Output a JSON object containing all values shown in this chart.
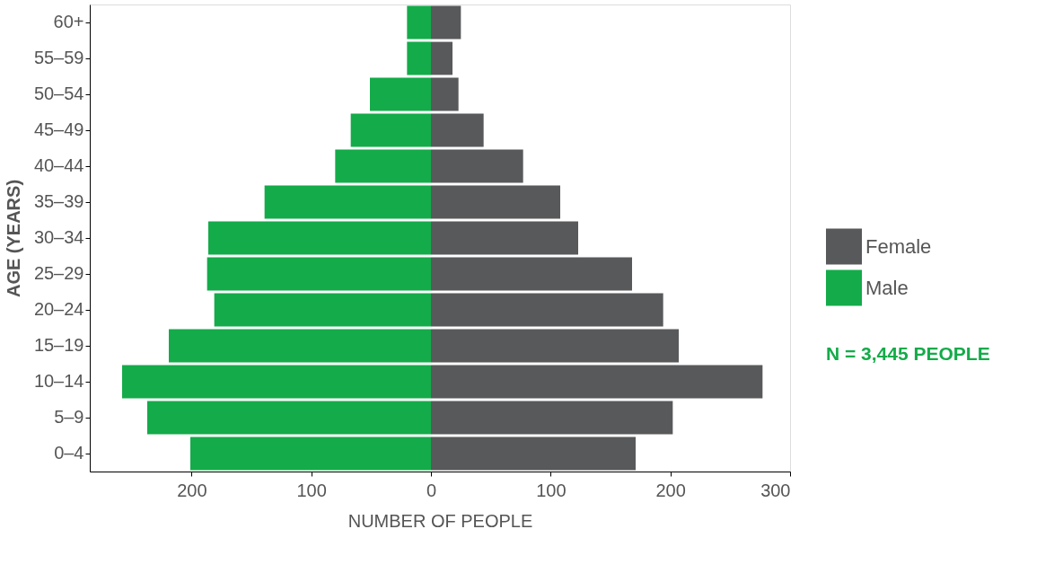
{
  "chart_data": {
    "type": "bar",
    "orientation": "horizontal",
    "stacked": true,
    "categories": [
      "60+",
      "55–59",
      "50–54",
      "45–49",
      "40–44",
      "35–39",
      "30–34",
      "25–29",
      "20–24",
      "15–19",
      "10–14",
      "5–9",
      "0–4"
    ],
    "series": [
      {
        "name": "Female",
        "color": "#58595b",
        "values": [
          25,
          18,
          23,
          44,
          77,
          108,
          123,
          168,
          194,
          207,
          277,
          202,
          171
        ]
      },
      {
        "name": "Male",
        "color": "#14ab4a",
        "values": [
          -20,
          -20,
          -51,
          -67,
          -80,
          -139,
          -186,
          -187,
          -181,
          -219,
          -258,
          -237,
          -201
        ]
      }
    ],
    "xlim": [
      -285,
      300
    ],
    "xticks": [
      {
        "value": -200,
        "label": "200"
      },
      {
        "value": -100,
        "label": "100"
      },
      0,
      100,
      200,
      300
    ],
    "xlabel": "NUMBER OF PEOPLE",
    "ylabel": "AGE (YEARS)",
    "legend": "right",
    "grid": false,
    "annotations": [
      "N = 3,445 PEOPLE"
    ]
  }
}
